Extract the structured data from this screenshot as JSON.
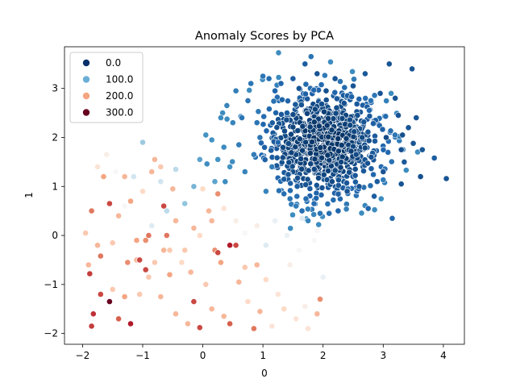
{
  "chart_data": {
    "type": "scatter",
    "title": "Anomaly Scores by PCA",
    "xlabel": "0",
    "ylabel": "1",
    "xlim": [
      -2.3,
      4.35
    ],
    "ylim": [
      -2.22,
      3.85
    ],
    "x_ticks": [
      -2,
      -1,
      0,
      1,
      2,
      3,
      4
    ],
    "y_ticks": [
      -2,
      -1,
      0,
      1,
      2,
      3
    ],
    "grid": false,
    "legend": {
      "placement": "top-left",
      "entries": [
        {
          "label": "0.0",
          "color": "#08306b"
        },
        {
          "label": "100.0",
          "color": "#6baed6"
        },
        {
          "label": "200.0",
          "color": "#f4a582"
        },
        {
          "label": "300.0",
          "color": "#67001f"
        }
      ]
    },
    "colormap": {
      "name": "RdBu_r",
      "hue_min": 0,
      "hue_max": 300
    },
    "points": [
      [
        4.05,
        1.16,
        20
      ],
      [
        3.85,
        1.58,
        25
      ],
      [
        3.65,
        1.75,
        22
      ],
      [
        3.62,
        1.2,
        18
      ],
      [
        3.55,
        2.4,
        20
      ],
      [
        3.5,
        1.88,
        20
      ],
      [
        3.48,
        3.4,
        20
      ],
      [
        3.42,
        2.2,
        20
      ],
      [
        3.35,
        1.5,
        22
      ],
      [
        3.32,
        2.05,
        18
      ],
      [
        3.3,
        1.05,
        20
      ],
      [
        3.3,
        1.75,
        18
      ],
      [
        3.25,
        2.45,
        20
      ],
      [
        3.2,
        2.8,
        20
      ],
      [
        3.15,
        0.35,
        30
      ],
      [
        3.1,
        3.5,
        20
      ],
      [
        3.05,
        2.0,
        15
      ],
      [
        3.0,
        1.3,
        20
      ],
      [
        2.95,
        2.9,
        20
      ],
      [
        2.9,
        1.1,
        25
      ],
      [
        2.85,
        0.8,
        25
      ],
      [
        2.8,
        1.6,
        18
      ],
      [
        2.75,
        0.55,
        30
      ],
      [
        2.7,
        3.3,
        22
      ],
      [
        2.65,
        2.0,
        15
      ],
      [
        2.6,
        1.0,
        20
      ],
      [
        2.55,
        1.65,
        15
      ],
      [
        2.5,
        3.05,
        20
      ],
      [
        2.45,
        2.25,
        12
      ],
      [
        2.4,
        0.9,
        20
      ],
      [
        2.35,
        2.7,
        18
      ],
      [
        2.3,
        1.5,
        12
      ],
      [
        2.25,
        0.5,
        30
      ],
      [
        2.2,
        3.2,
        20
      ],
      [
        2.15,
        1.1,
        15
      ],
      [
        2.1,
        0.45,
        35
      ],
      [
        2.05,
        2.95,
        18
      ],
      [
        1.95,
        0.45,
        40
      ],
      [
        1.9,
        3.3,
        20
      ],
      [
        1.85,
        0.65,
        35
      ],
      [
        1.8,
        3.65,
        40
      ],
      [
        1.75,
        0.3,
        50
      ],
      [
        1.7,
        3.5,
        25
      ],
      [
        1.65,
        0.5,
        35
      ],
      [
        1.6,
        3.0,
        20
      ],
      [
        1.55,
        0.6,
        45
      ],
      [
        1.5,
        3.2,
        25
      ],
      [
        1.45,
        0.75,
        40
      ],
      [
        1.4,
        2.5,
        25
      ],
      [
        1.35,
        0.85,
        35
      ],
      [
        1.3,
        3.1,
        30
      ],
      [
        1.25,
        1.9,
        30
      ],
      [
        1.2,
        2.95,
        30
      ],
      [
        1.15,
        1.4,
        45
      ],
      [
        1.1,
        3.2,
        35
      ],
      [
        1.05,
        0.9,
        50
      ],
      [
        1.0,
        3.25,
        40
      ],
      [
        0.95,
        2.0,
        40
      ],
      [
        0.9,
        2.3,
        40
      ],
      [
        0.85,
        1.65,
        45
      ],
      [
        0.8,
        3.1,
        40
      ],
      [
        0.75,
        2.75,
        40
      ],
      [
        0.7,
        1.3,
        50
      ],
      [
        0.65,
        2.4,
        40
      ],
      [
        0.6,
        1.85,
        45
      ],
      [
        0.55,
        2.95,
        45
      ],
      [
        0.5,
        2.3,
        50
      ],
      [
        0.45,
        1.4,
        60
      ],
      [
        0.4,
        2.65,
        50
      ],
      [
        0.35,
        1.8,
        55
      ],
      [
        0.3,
        2.4,
        55
      ],
      [
        0.25,
        1.55,
        60
      ],
      [
        0.2,
        1.1,
        70
      ],
      [
        0.15,
        1.95,
        60
      ],
      [
        0.05,
        2.05,
        60
      ],
      [
        -0.05,
        1.55,
        70
      ],
      [
        -0.15,
        1.0,
        80
      ],
      [
        -0.3,
        0.65,
        90
      ],
      [
        -0.45,
        1.35,
        110
      ],
      [
        -0.6,
        0.5,
        110
      ],
      [
        -0.7,
        1.1,
        120
      ],
      [
        -0.85,
        0.2,
        130
      ],
      [
        -1.0,
        1.9,
        95
      ],
      [
        -1.15,
        1.2,
        120
      ],
      [
        -1.3,
        0.6,
        150
      ],
      [
        -1.45,
        1.3,
        150
      ],
      [
        -1.6,
        1.65,
        160
      ],
      [
        -1.75,
        1.4,
        170
      ],
      [
        -1.85,
        0.5,
        230
      ],
      [
        -1.95,
        0.05,
        190
      ],
      [
        -1.9,
        -0.6,
        200
      ],
      [
        -1.88,
        -0.78,
        255
      ],
      [
        -1.7,
        -0.42,
        230
      ],
      [
        -1.82,
        -1.6,
        260
      ],
      [
        -1.85,
        -1.85,
        255
      ],
      [
        -1.7,
        -1.2,
        250
      ],
      [
        -1.55,
        -1.35,
        300
      ],
      [
        -1.5,
        -1.1,
        190
      ],
      [
        -1.4,
        -1.7,
        240
      ],
      [
        -1.3,
        -1.25,
        210
      ],
      [
        -1.2,
        -1.8,
        270
      ],
      [
        -1.1,
        -0.5,
        200
      ],
      [
        -1.05,
        -1.2,
        190
      ],
      [
        -0.95,
        -0.1,
        220
      ],
      [
        -0.9,
        -0.85,
        190
      ],
      [
        -0.8,
        -0.55,
        190
      ],
      [
        -0.7,
        -1.25,
        200
      ],
      [
        -0.65,
        -0.3,
        200
      ],
      [
        -0.55,
        -0.8,
        210
      ],
      [
        -0.45,
        -1.6,
        200
      ],
      [
        -0.35,
        -0.55,
        180
      ],
      [
        -0.25,
        -1.8,
        200
      ],
      [
        -0.15,
        -1.35,
        250
      ],
      [
        -0.05,
        -1.88,
        250
      ],
      [
        0.05,
        -1.0,
        190
      ],
      [
        0.15,
        -1.5,
        200
      ],
      [
        0.2,
        -0.3,
        220
      ],
      [
        0.3,
        -0.55,
        210
      ],
      [
        0.35,
        -1.65,
        200
      ],
      [
        0.45,
        -1.8,
        240
      ],
      [
        0.55,
        -0.2,
        250
      ],
      [
        0.6,
        -0.95,
        200
      ],
      [
        0.7,
        -0.65,
        190
      ],
      [
        0.75,
        -1.35,
        180
      ],
      [
        0.85,
        -1.9,
        230
      ],
      [
        0.9,
        -0.6,
        200
      ],
      [
        0.95,
        -1.55,
        200
      ],
      [
        1.05,
        -0.9,
        180
      ],
      [
        1.15,
        -1.85,
        170
      ],
      [
        1.25,
        -1.2,
        170
      ],
      [
        1.35,
        -1.5,
        180
      ],
      [
        1.45,
        -0.6,
        160
      ],
      [
        1.55,
        -1.7,
        170
      ],
      [
        1.6,
        -0.3,
        150
      ],
      [
        1.7,
        -1.45,
        160
      ],
      [
        1.75,
        -1.9,
        170
      ],
      [
        1.85,
        -0.1,
        150
      ],
      [
        1.9,
        -1.6,
        200
      ],
      [
        1.95,
        -1.3,
        220
      ],
      [
        2.0,
        -0.85,
        140
      ],
      [
        1.9,
        0.1,
        150
      ],
      [
        1.65,
        0.35,
        130
      ],
      [
        1.4,
        0.0,
        140
      ],
      [
        1.2,
        0.3,
        140
      ],
      [
        1.05,
        -0.2,
        130
      ],
      [
        0.9,
        0.2,
        160
      ],
      [
        0.7,
        0.05,
        150
      ],
      [
        0.55,
        0.3,
        160
      ],
      [
        0.35,
        0.55,
        170
      ],
      [
        0.25,
        0.85,
        220
      ],
      [
        0.15,
        0.3,
        200
      ],
      [
        0.0,
        0.95,
        180
      ],
      [
        -0.15,
        0.15,
        200
      ],
      [
        -0.3,
        -0.3,
        190
      ],
      [
        -0.5,
        0.95,
        200
      ],
      [
        -0.65,
        0.6,
        250
      ],
      [
        -0.7,
        1.4,
        190
      ],
      [
        -0.8,
        1.55,
        200
      ],
      [
        -1.0,
        0.9,
        180
      ],
      [
        -1.1,
        -0.1,
        210
      ],
      [
        -1.2,
        0.7,
        210
      ],
      [
        -1.4,
        0.4,
        200
      ],
      [
        -1.55,
        0.65,
        250
      ],
      [
        -1.65,
        1.2,
        210
      ],
      [
        -1.75,
        -0.2,
        200
      ],
      [
        -1.5,
        -0.15,
        190
      ],
      [
        -1.3,
        1.2,
        200
      ],
      [
        -0.9,
        0.0,
        230
      ],
      [
        -0.6,
        0.0,
        230
      ],
      [
        -0.55,
        -0.3,
        190
      ],
      [
        0.45,
        -0.2,
        270
      ],
      [
        0.25,
        -0.35,
        250
      ],
      [
        0.1,
        0.5,
        200
      ],
      [
        -0.05,
        0.0,
        180
      ],
      [
        -0.2,
        -0.75,
        200
      ],
      [
        -0.95,
        -0.7,
        250
      ],
      [
        -1.05,
        -0.5,
        250
      ],
      [
        -1.25,
        -0.55,
        220
      ],
      [
        -0.85,
        1.3,
        200
      ],
      [
        -0.45,
        0.3,
        200
      ]
    ],
    "cluster": {
      "center": [
        2.0,
        1.9
      ],
      "spread": [
        0.48,
        0.52
      ],
      "count": 900
    }
  }
}
